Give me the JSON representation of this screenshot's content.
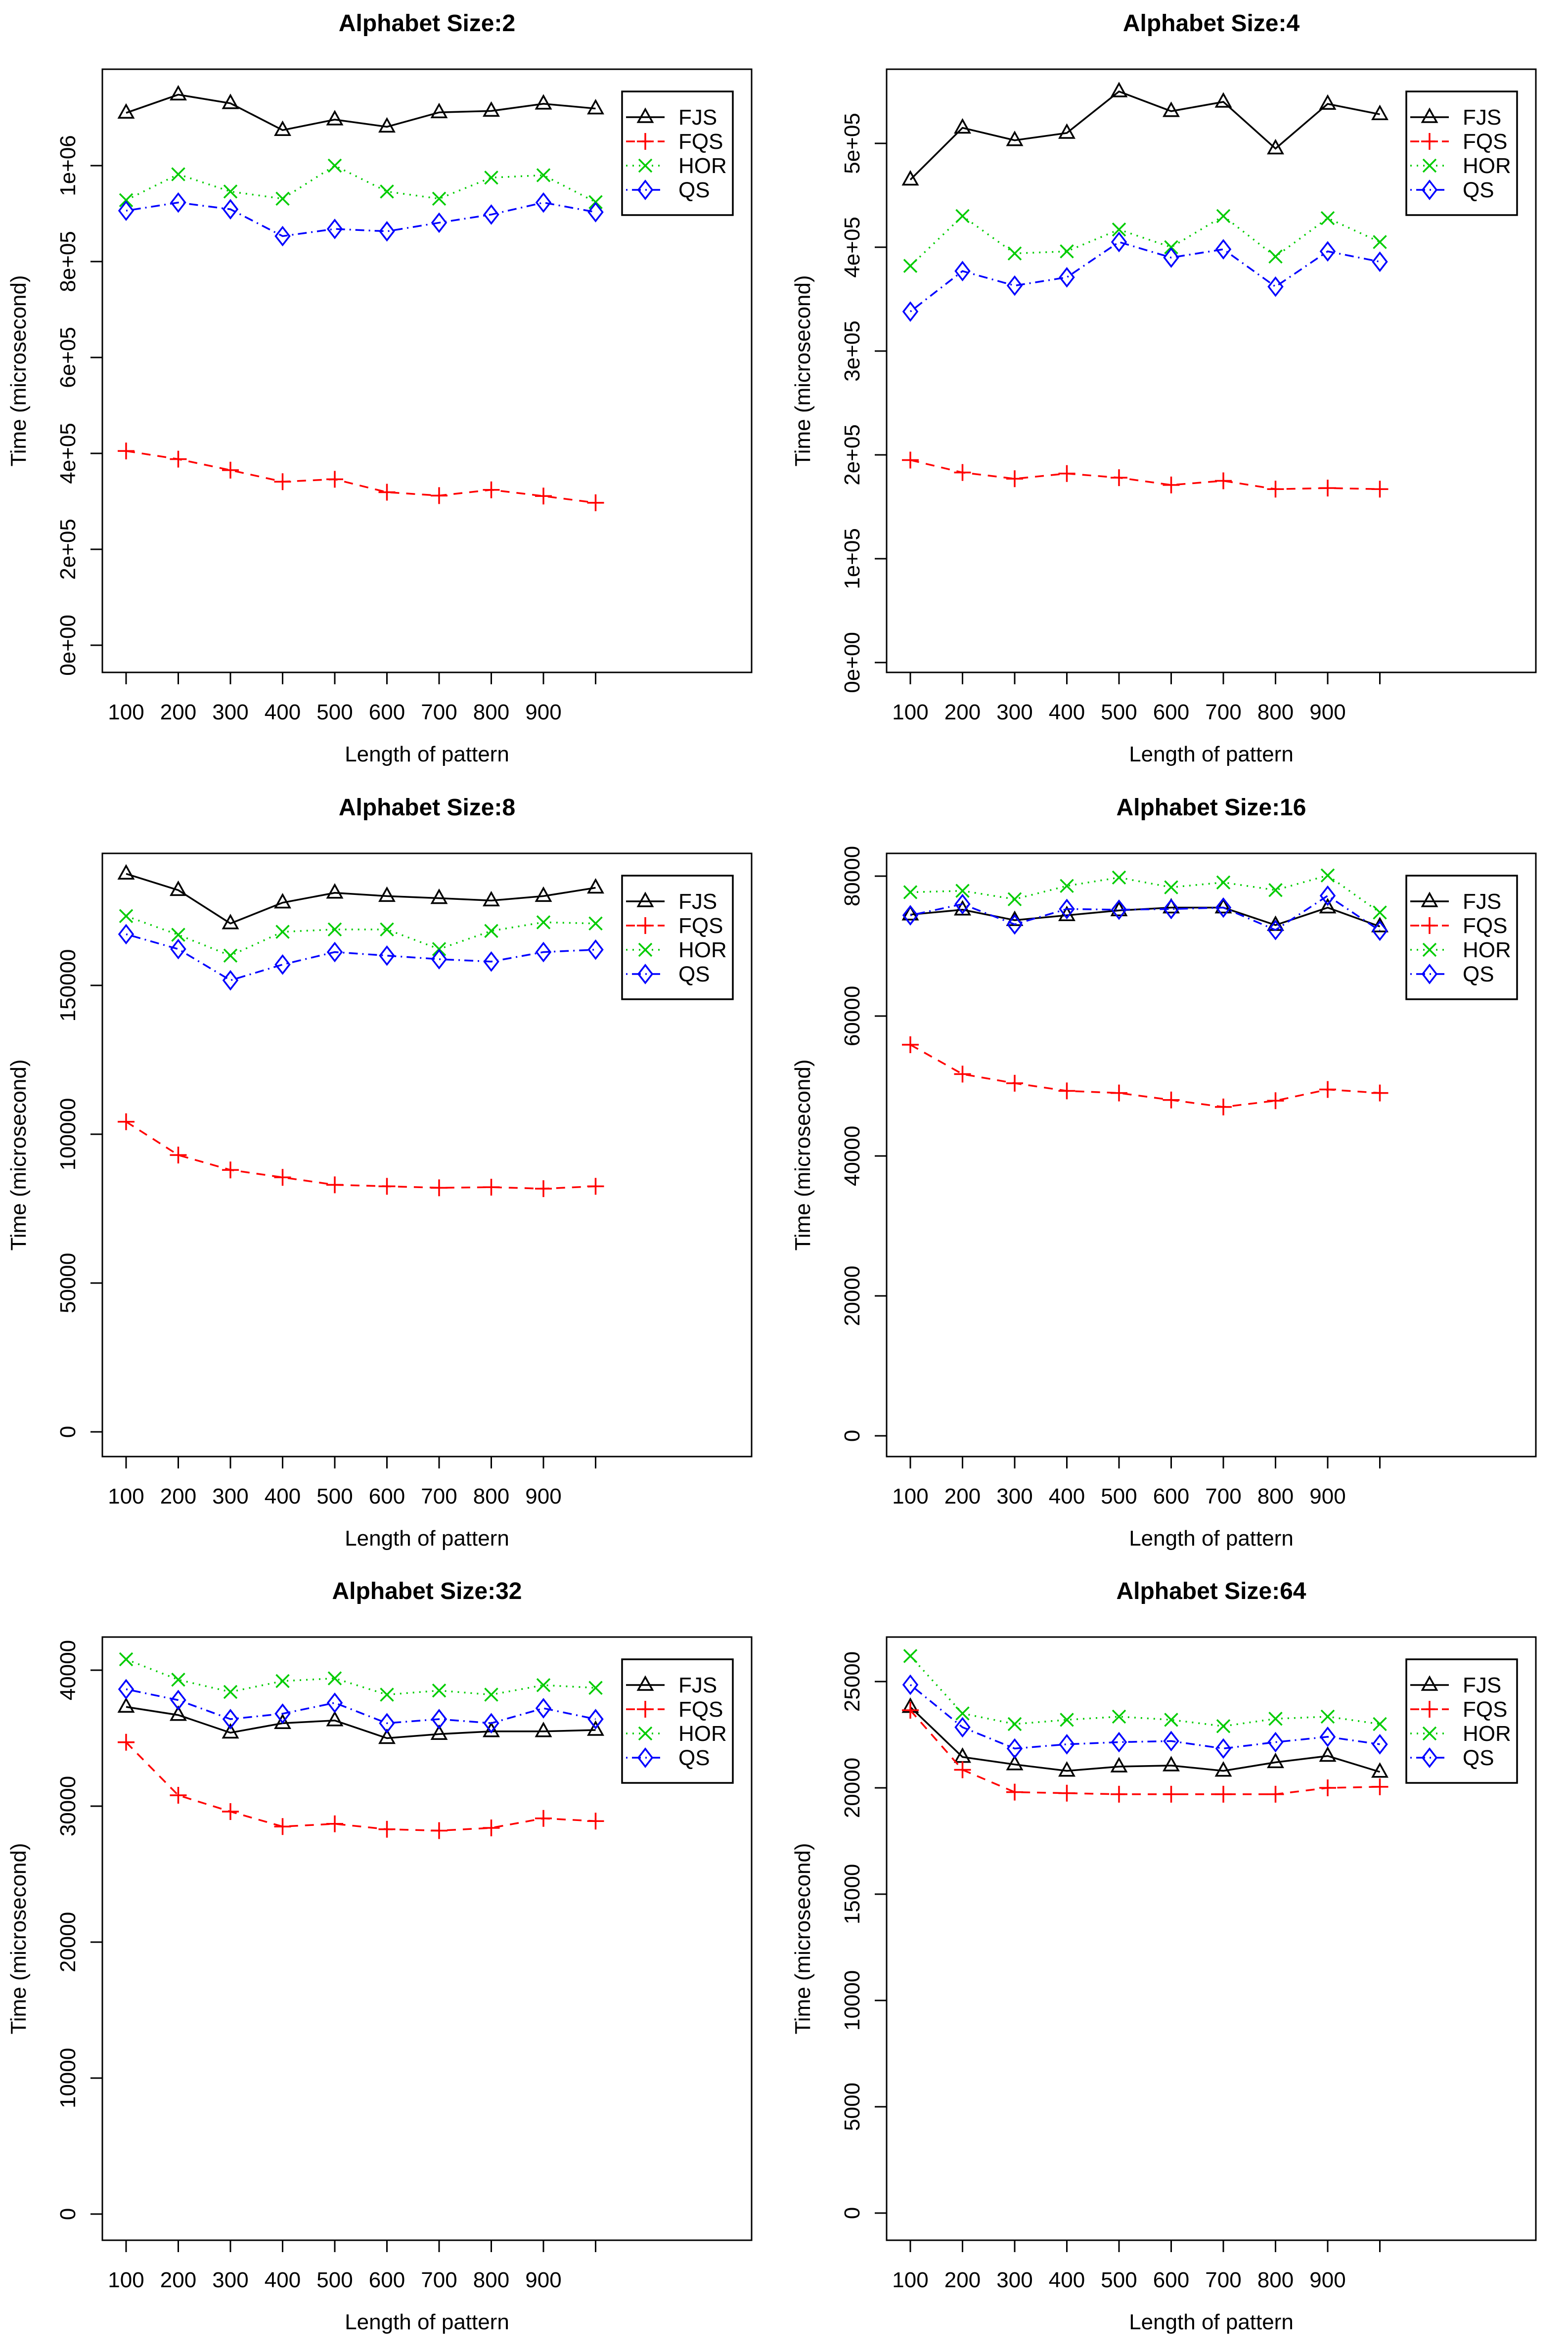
{
  "figure": {
    "background": "#ffffff",
    "x_axis_label": "Length of pattern",
    "y_axis_label": "Time (microsecond)",
    "legend": {
      "position": "topright",
      "entries": [
        "FJS",
        "FQS",
        "HOR",
        "QS"
      ]
    },
    "series_styles": [
      {
        "name": "FJS",
        "color": "#000000",
        "line": "solid",
        "marker": "triangle"
      },
      {
        "name": "FQS",
        "color": "#ff0000",
        "line": "dashed",
        "marker": "plus"
      },
      {
        "name": "HOR",
        "color": "#00cc00",
        "line": "dotted",
        "marker": "x"
      },
      {
        "name": "QS",
        "color": "#0000ff",
        "line": "dotdash",
        "marker": "diamond"
      }
    ]
  },
  "chart_data": [
    {
      "type": "line",
      "title": "Alphabet Size:2",
      "xlabel": "Length of pattern",
      "ylabel": "Time (microsecond)",
      "x": [
        100,
        200,
        300,
        400,
        500,
        600,
        700,
        800,
        900,
        1000
      ],
      "x_tick_labels": [
        "100",
        "200",
        "300",
        "400",
        "500",
        "600",
        "700",
        "800",
        "900",
        ""
      ],
      "y_tick_values": [
        0,
        200000,
        400000,
        600000,
        800000,
        1000000
      ],
      "y_tick_labels": [
        "0e+00",
        "2e+05",
        "4e+05",
        "6e+05",
        "8e+05",
        "1e+06"
      ],
      "ylim": [
        0,
        1200000
      ],
      "grid": false,
      "legend_position": "topright",
      "series": [
        {
          "name": "FJS",
          "values": [
            1110000,
            1148000,
            1130000,
            1074000,
            1096000,
            1081000,
            1111000,
            1114000,
            1129000,
            1119000
          ]
        },
        {
          "name": "FQS",
          "values": [
            405000,
            388000,
            365000,
            341000,
            346000,
            319000,
            312000,
            324000,
            311000,
            297000
          ]
        },
        {
          "name": "HOR",
          "values": [
            928000,
            982000,
            946000,
            931000,
            1000000,
            946000,
            931000,
            975000,
            980000,
            924000
          ]
        },
        {
          "name": "QS",
          "values": [
            906000,
            923000,
            909000,
            853000,
            868000,
            863000,
            881000,
            898000,
            923000,
            903000
          ]
        }
      ]
    },
    {
      "type": "line",
      "title": "Alphabet Size:4",
      "xlabel": "Length of pattern",
      "ylabel": "Time (microsecond)",
      "x": [
        100,
        200,
        300,
        400,
        500,
        600,
        700,
        800,
        900,
        1000
      ],
      "x_tick_labels": [
        "100",
        "200",
        "300",
        "400",
        "500",
        "600",
        "700",
        "800",
        "900",
        ""
      ],
      "y_tick_values": [
        0,
        100000,
        200000,
        300000,
        400000,
        500000
      ],
      "y_tick_labels": [
        "0e+00",
        "1e+05",
        "2e+05",
        "3e+05",
        "4e+05",
        "5e+05"
      ],
      "ylim": [
        0,
        570000
      ],
      "grid": false,
      "legend_position": "topright",
      "series": [
        {
          "name": "FJS",
          "values": [
            465000,
            515000,
            503000,
            510000,
            550000,
            531000,
            540000,
            495000,
            538000,
            528000
          ]
        },
        {
          "name": "FQS",
          "values": [
            195000,
            183000,
            177000,
            182000,
            178000,
            171000,
            175000,
            167000,
            168000,
            167000
          ]
        },
        {
          "name": "HOR",
          "values": [
            382000,
            430000,
            394000,
            396000,
            417000,
            400000,
            430000,
            391000,
            428000,
            405000
          ]
        },
        {
          "name": "QS",
          "values": [
            338000,
            377000,
            363000,
            371000,
            405000,
            390000,
            398000,
            362000,
            396000,
            386000
          ]
        }
      ]
    },
    {
      "type": "line",
      "title": "Alphabet Size:8",
      "xlabel": "Length of pattern",
      "ylabel": "Time (microsecond)",
      "x": [
        100,
        200,
        300,
        400,
        500,
        600,
        700,
        800,
        900,
        1000
      ],
      "x_tick_labels": [
        "100",
        "200",
        "300",
        "400",
        "500",
        "600",
        "700",
        "800",
        "900",
        ""
      ],
      "y_tick_values": [
        0,
        50000,
        100000,
        150000
      ],
      "y_tick_labels": [
        "0",
        "50000",
        "100000",
        "150000"
      ],
      "ylim": [
        0,
        194000
      ],
      "grid": false,
      "legend_position": "topright",
      "series": [
        {
          "name": "FJS",
          "values": [
            187500,
            182000,
            170800,
            177800,
            181100,
            180000,
            179300,
            178500,
            180000,
            182800
          ]
        },
        {
          "name": "FQS",
          "values": [
            104200,
            93000,
            88000,
            85500,
            83000,
            82500,
            82000,
            82200,
            81700,
            82500
          ]
        },
        {
          "name": "HOR",
          "values": [
            173300,
            167000,
            160000,
            168000,
            168800,
            168800,
            162200,
            168300,
            171200,
            170800
          ]
        },
        {
          "name": "QS",
          "values": [
            167200,
            162200,
            151700,
            157000,
            161200,
            160000,
            158800,
            158000,
            161200,
            162000
          ]
        }
      ]
    },
    {
      "type": "line",
      "title": "Alphabet Size:16",
      "xlabel": "Length of pattern",
      "ylabel": "Time (microsecond)",
      "x": [
        100,
        200,
        300,
        400,
        500,
        600,
        700,
        800,
        900,
        1000
      ],
      "x_tick_labels": [
        "100",
        "200",
        "300",
        "400",
        "500",
        "600",
        "700",
        "800",
        "900",
        ""
      ],
      "y_tick_values": [
        0,
        20000,
        40000,
        60000,
        80000
      ],
      "y_tick_labels": [
        "0",
        "20000",
        "40000",
        "60000",
        "80000"
      ],
      "ylim": [
        0,
        83000
      ],
      "grid": false,
      "legend_position": "topright",
      "series": [
        {
          "name": "FJS",
          "values": [
            74500,
            75200,
            73700,
            74400,
            75100,
            75500,
            75500,
            73000,
            75500,
            72800
          ]
        },
        {
          "name": "FQS",
          "values": [
            55900,
            51700,
            50400,
            49300,
            49000,
            48000,
            47000,
            47900,
            49500,
            49000
          ]
        },
        {
          "name": "HOR",
          "values": [
            77700,
            77900,
            76700,
            78600,
            79800,
            78400,
            79100,
            78000,
            80100,
            74800
          ]
        },
        {
          "name": "QS",
          "values": [
            74400,
            76000,
            73100,
            75300,
            75200,
            75300,
            75500,
            72300,
            77200,
            72200
          ]
        }
      ]
    },
    {
      "type": "line",
      "title": "Alphabet Size:32",
      "xlabel": "Length of pattern",
      "ylabel": "Time (microsecond)",
      "x": [
        100,
        200,
        300,
        400,
        500,
        600,
        700,
        800,
        900,
        1000
      ],
      "x_tick_labels": [
        "100",
        "200",
        "300",
        "400",
        "500",
        "600",
        "700",
        "800",
        "900",
        ""
      ],
      "y_tick_values": [
        0,
        10000,
        20000,
        30000,
        40000
      ],
      "y_tick_labels": [
        "0",
        "10000",
        "20000",
        "30000",
        "40000"
      ],
      "ylim": [
        0,
        42400
      ],
      "grid": false,
      "legend_position": "topright",
      "series": [
        {
          "name": "FJS",
          "values": [
            37300,
            36700,
            35400,
            36100,
            36300,
            35000,
            35300,
            35500,
            35500,
            35600
          ]
        },
        {
          "name": "FQS",
          "values": [
            34700,
            30800,
            29600,
            28500,
            28700,
            28300,
            28200,
            28400,
            29100,
            28900
          ]
        },
        {
          "name": "HOR",
          "values": [
            40800,
            39300,
            38400,
            39200,
            39400,
            38200,
            38500,
            38200,
            38900,
            38700
          ]
        },
        {
          "name": "QS",
          "values": [
            38600,
            37800,
            36400,
            36800,
            37600,
            36100,
            36400,
            36100,
            37200,
            36400
          ]
        }
      ]
    },
    {
      "type": "line",
      "title": "Alphabet Size:64",
      "xlabel": "Length of pattern",
      "ylabel": "Time (microsecond)",
      "x": [
        100,
        200,
        300,
        400,
        500,
        600,
        700,
        800,
        900,
        1000
      ],
      "x_tick_labels": [
        "100",
        "200",
        "300",
        "400",
        "500",
        "600",
        "700",
        "800",
        "900",
        ""
      ],
      "y_tick_values": [
        0,
        5000,
        10000,
        15000,
        20000,
        25000
      ],
      "y_tick_labels": [
        "0",
        "5000",
        "10000",
        "15000",
        "20000",
        "25000"
      ],
      "ylim": [
        0,
        27100
      ],
      "grid": false,
      "legend_position": "topright",
      "series": [
        {
          "name": "FJS",
          "values": [
            23800,
            21450,
            21100,
            20800,
            21000,
            21050,
            20800,
            21200,
            21500,
            20750
          ]
        },
        {
          "name": "FQS",
          "values": [
            23650,
            20850,
            19800,
            19750,
            19700,
            19700,
            19700,
            19700,
            20000,
            20050
          ]
        },
        {
          "name": "HOR",
          "values": [
            26200,
            23500,
            23000,
            23200,
            23350,
            23200,
            22900,
            23250,
            23350,
            23000
          ]
        },
        {
          "name": "QS",
          "values": [
            24850,
            22850,
            21850,
            22050,
            22150,
            22200,
            21850,
            22150,
            22400,
            22050
          ]
        }
      ]
    }
  ]
}
